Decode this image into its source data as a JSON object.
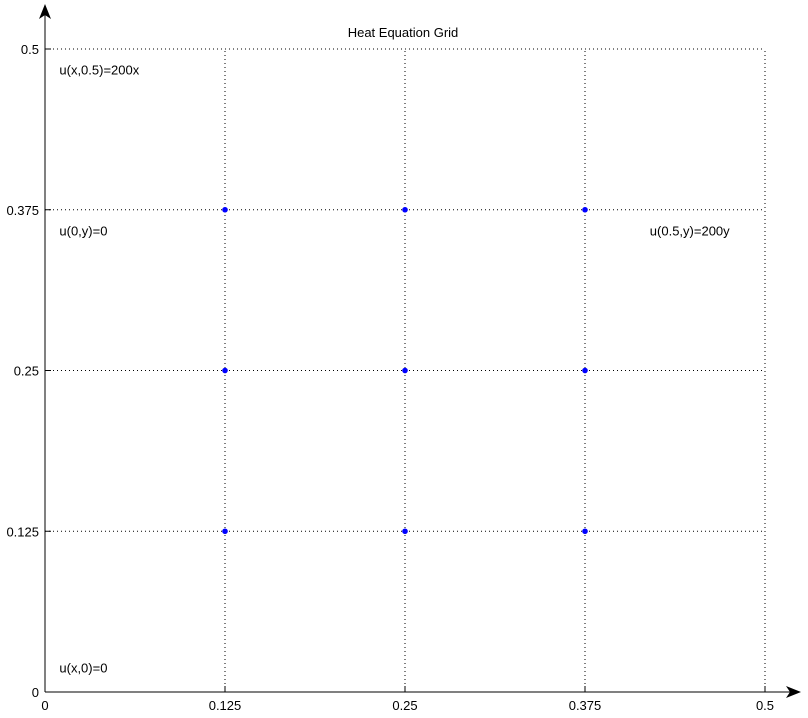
{
  "chart_data": {
    "type": "scatter",
    "title": "Heat Equation Grid",
    "xlabel": "",
    "ylabel": "",
    "xlim": [
      0,
      0.5
    ],
    "ylim": [
      0,
      0.5
    ],
    "grid": true,
    "x_ticks": [
      "0",
      "0.125",
      "0.25",
      "0.375",
      "0.5"
    ],
    "y_ticks": [
      "0",
      "0.125",
      "0.25",
      "0.375",
      "0.5"
    ],
    "x_tick_values": [
      0,
      0.125,
      0.25,
      0.375,
      0.5
    ],
    "y_tick_values": [
      0,
      0.125,
      0.25,
      0.375,
      0.5
    ],
    "point_color": "#0000ff",
    "points": [
      {
        "x": 0.125,
        "y": 0.125
      },
      {
        "x": 0.25,
        "y": 0.125
      },
      {
        "x": 0.375,
        "y": 0.125
      },
      {
        "x": 0.125,
        "y": 0.25
      },
      {
        "x": 0.25,
        "y": 0.25
      },
      {
        "x": 0.375,
        "y": 0.25
      },
      {
        "x": 0.125,
        "y": 0.375
      },
      {
        "x": 0.25,
        "y": 0.375
      },
      {
        "x": 0.375,
        "y": 0.375
      }
    ],
    "annotations": [
      {
        "text": "u(x,0.5)=200x",
        "x": 0.01,
        "y": 0.48
      },
      {
        "text": "u(0,y)=0",
        "x": 0.01,
        "y": 0.355
      },
      {
        "text": "u(0.5,y)=200y",
        "x": 0.42,
        "y": 0.355
      },
      {
        "text": "u(x,0)=0",
        "x": 0.01,
        "y": 0.015
      }
    ]
  }
}
